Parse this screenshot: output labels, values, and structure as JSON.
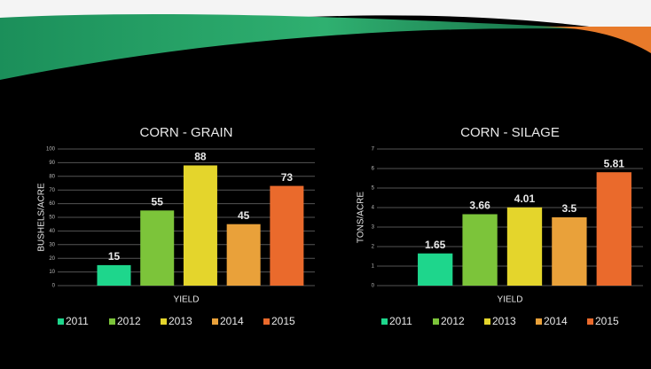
{
  "chart_data": [
    {
      "type": "bar",
      "title": "CORN - GRAIN",
      "y_label": "BUSHELS/ACRE",
      "categories": [
        "YIELD"
      ],
      "series": [
        {
          "name": "2011",
          "color": "#1ed68c",
          "values": [
            15
          ]
        },
        {
          "name": "2012",
          "color": "#7cc43a",
          "values": [
            55
          ]
        },
        {
          "name": "2013",
          "color": "#e4d52c",
          "values": [
            88
          ]
        },
        {
          "name": "2014",
          "color": "#e9a13a",
          "values": [
            45
          ]
        },
        {
          "name": "2015",
          "color": "#ea6a2c",
          "values": [
            73
          ]
        }
      ],
      "ylim": [
        0,
        100
      ],
      "yticks": [
        0,
        10,
        20,
        30,
        40,
        50,
        60,
        70,
        80,
        90,
        100
      ],
      "grid": true,
      "legend": "bottom"
    },
    {
      "type": "bar",
      "title": "CORN - SILAGE",
      "y_label": "TONS/ACRE",
      "categories": [
        "YIELD"
      ],
      "series": [
        {
          "name": "2011",
          "color": "#1ed68c",
          "values": [
            1.65
          ]
        },
        {
          "name": "2012",
          "color": "#7cc43a",
          "values": [
            3.66
          ]
        },
        {
          "name": "2013",
          "color": "#e4d52c",
          "values": [
            4.01
          ]
        },
        {
          "name": "2014",
          "color": "#e9a13a",
          "values": [
            3.5
          ]
        },
        {
          "name": "2015",
          "color": "#ea6a2c",
          "values": [
            5.81
          ]
        }
      ],
      "ylim": [
        0,
        7
      ],
      "yticks": [
        0,
        1,
        2,
        3,
        4,
        5,
        6,
        7
      ],
      "grid": true,
      "legend": "bottom"
    }
  ]
}
